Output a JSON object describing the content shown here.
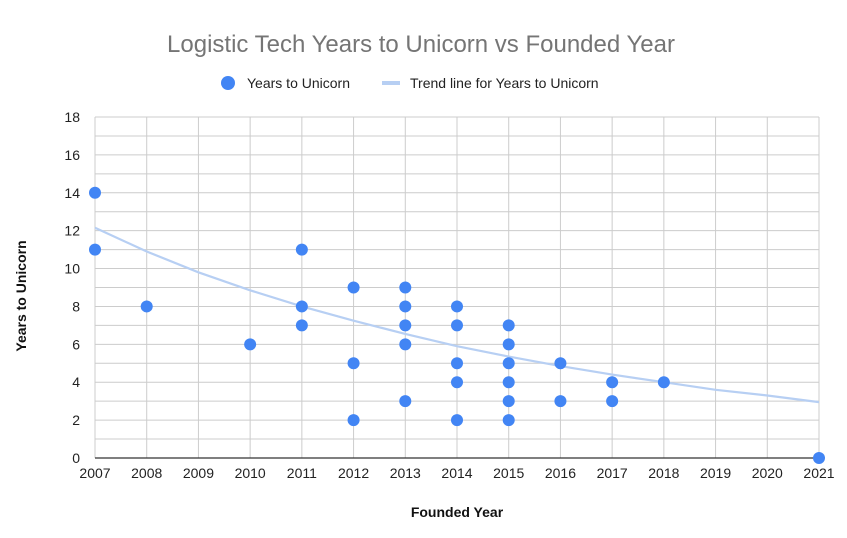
{
  "chart_data": {
    "type": "scatter",
    "title": "Logistic Tech Years to Unicorn vs Founded Year",
    "xlabel": "Founded Year",
    "ylabel": "Years to Unicorn",
    "xlim": [
      2007,
      2021
    ],
    "ylim": [
      0,
      18
    ],
    "x_ticks": [
      "2007",
      "2008",
      "2009",
      "2010",
      "2011",
      "2012",
      "2013",
      "2014",
      "2015",
      "2016",
      "2017",
      "2018",
      "2019",
      "2020",
      "2021"
    ],
    "y_ticks": [
      "0",
      "2",
      "4",
      "6",
      "8",
      "10",
      "12",
      "14",
      "16",
      "18"
    ],
    "grid": true,
    "legend": {
      "position": "top",
      "entries": [
        "Years to Unicorn",
        "Trend line for Years to Unicorn"
      ]
    },
    "colors": {
      "points": "#4285f4",
      "trend": "#b7cff3",
      "title": "#757575"
    },
    "series": [
      {
        "name": "Years to Unicorn",
        "points": [
          [
            2007,
            14
          ],
          [
            2007,
            11
          ],
          [
            2008,
            8
          ],
          [
            2010,
            6
          ],
          [
            2011,
            11
          ],
          [
            2011,
            8
          ],
          [
            2011,
            7
          ],
          [
            2012,
            9
          ],
          [
            2012,
            5
          ],
          [
            2012,
            2
          ],
          [
            2013,
            9
          ],
          [
            2013,
            8
          ],
          [
            2013,
            7
          ],
          [
            2013,
            6
          ],
          [
            2013,
            3
          ],
          [
            2014,
            8
          ],
          [
            2014,
            7
          ],
          [
            2014,
            5
          ],
          [
            2014,
            4
          ],
          [
            2014,
            2
          ],
          [
            2015,
            7
          ],
          [
            2015,
            6
          ],
          [
            2015,
            5
          ],
          [
            2015,
            4
          ],
          [
            2015,
            3
          ],
          [
            2015,
            2
          ],
          [
            2016,
            5
          ],
          [
            2016,
            3
          ],
          [
            2017,
            4
          ],
          [
            2017,
            3
          ],
          [
            2018,
            4
          ],
          [
            2021,
            0
          ]
        ]
      },
      {
        "name": "Trend line for Years to Unicorn",
        "type": "exponential-trend",
        "points": [
          [
            2007,
            12.15
          ],
          [
            2008,
            10.9
          ],
          [
            2009,
            9.8
          ],
          [
            2010,
            8.85
          ],
          [
            2011,
            8.0
          ],
          [
            2012,
            7.25
          ],
          [
            2013,
            6.55
          ],
          [
            2014,
            5.9
          ],
          [
            2015,
            5.35
          ],
          [
            2016,
            4.85
          ],
          [
            2017,
            4.4
          ],
          [
            2018,
            4.0
          ],
          [
            2019,
            3.6
          ],
          [
            2020,
            3.3
          ],
          [
            2021,
            2.95
          ]
        ]
      }
    ]
  }
}
